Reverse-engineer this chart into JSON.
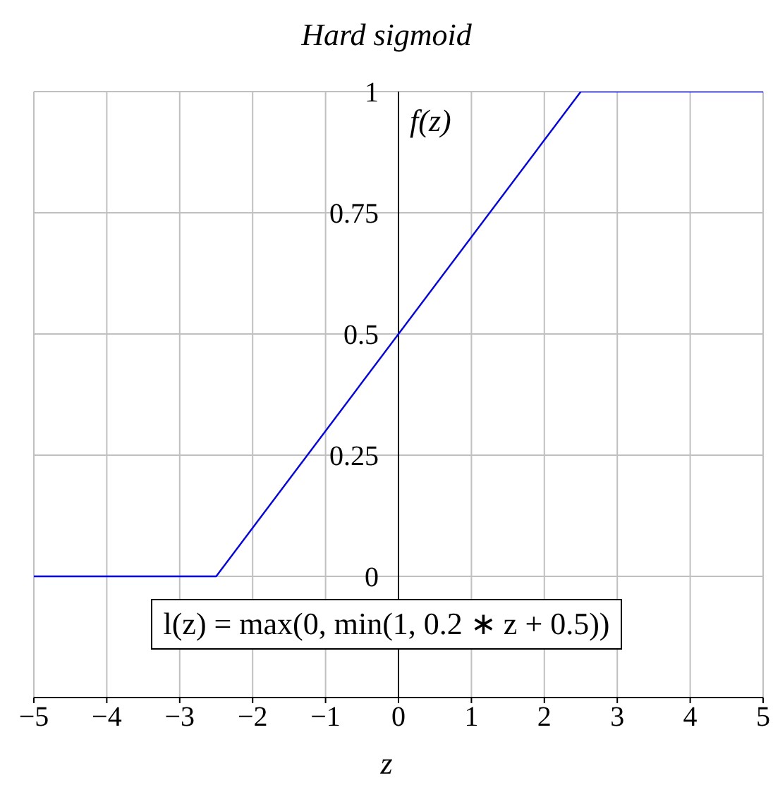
{
  "chart_data": {
    "type": "line",
    "title": "Hard sigmoid",
    "xlabel": "z",
    "ylabel": "f(z)",
    "x": [
      -5,
      -2.5,
      2.5,
      5
    ],
    "series": [
      {
        "color": "#0000ff",
        "values": [
          0,
          0,
          1,
          1
        ]
      }
    ],
    "xlim": [
      -5,
      5
    ],
    "xticks": [
      -5,
      -4,
      -3,
      -2,
      -1,
      0,
      1,
      2,
      3,
      4,
      5
    ],
    "ylim": [
      -0.25,
      1
    ],
    "yticks": [
      0,
      0.25,
      0.5,
      0.75,
      1
    ],
    "grid": true,
    "marker": "none",
    "line_style": "solid",
    "annotations": [
      "l(z) = max(0, min(1, 0.2 ∗ z + 0.5))"
    ]
  }
}
